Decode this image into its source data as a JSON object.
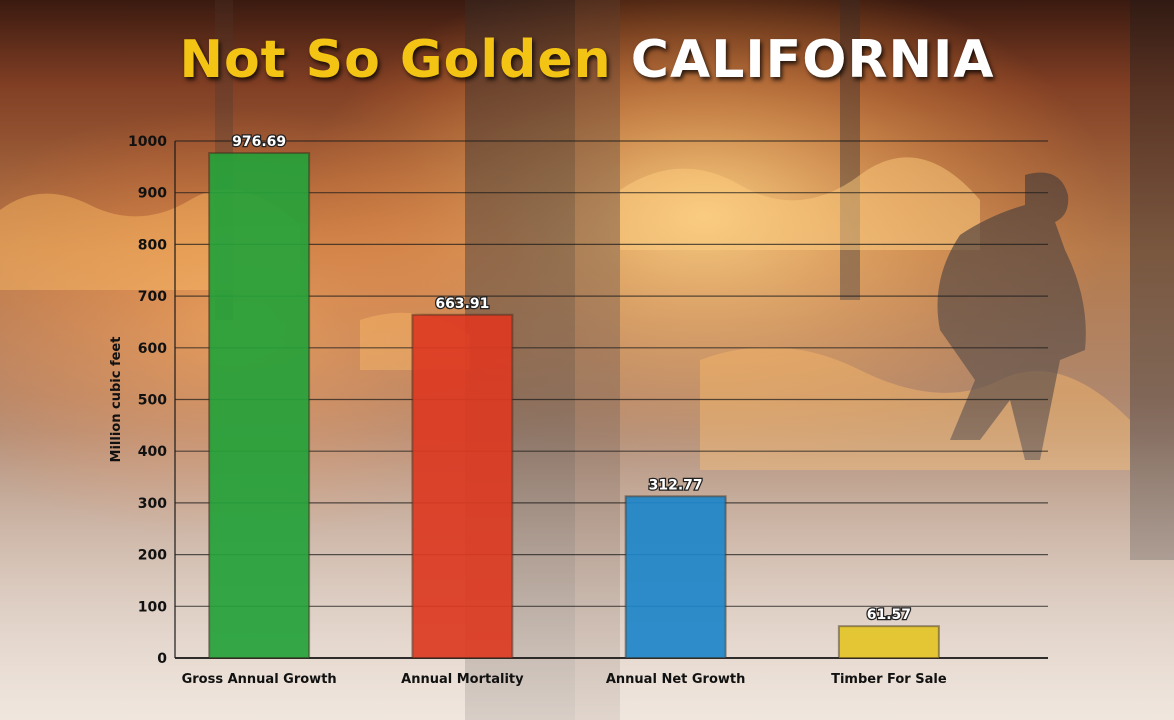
{
  "title": {
    "part1": "Not So Golden",
    "part2": "CALIFORNIA"
  },
  "colors": {
    "title_part1": "#f4c414",
    "title_part2": "#ffffff"
  },
  "chart_data": {
    "type": "bar",
    "categories": [
      "Gross Annual Growth",
      "Annual Mortality",
      "Annual Net Growth",
      "Timber For Sale"
    ],
    "values": [
      976.69,
      663.91,
      312.77,
      61.57
    ],
    "data_labels": [
      "976.69",
      "663.91",
      "312.77",
      "61.57"
    ],
    "colors": [
      "#25a23a",
      "#dd3a22",
      "#1e86c9",
      "#e4c528"
    ],
    "title": "Not So Golden CALIFORNIA",
    "xlabel": "",
    "ylabel": "Million cubic feet",
    "ylim": [
      0,
      1000
    ],
    "yticks": [
      0,
      100,
      200,
      300,
      400,
      500,
      600,
      700,
      800,
      900,
      1000
    ],
    "grid": true
  }
}
